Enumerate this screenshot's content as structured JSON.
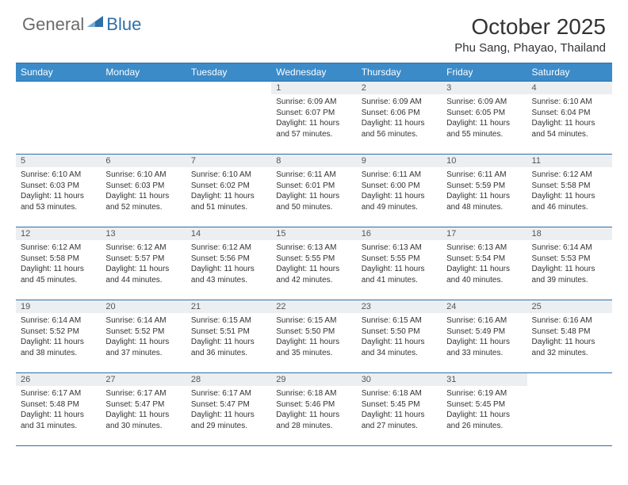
{
  "branding": {
    "logo_general": "General",
    "logo_blue": "Blue",
    "logo_colors": {
      "general": "#6b6b6b",
      "blue": "#2f6fa8",
      "icon": "#2f6fa8"
    }
  },
  "header": {
    "month_title": "October 2025",
    "location": "Phu Sang, Phayao, Thailand"
  },
  "colors": {
    "header_bg": "#3b8bc9",
    "header_border": "#2f6fa8",
    "daynum_bg": "#eceff1",
    "text": "#333333",
    "background": "#ffffff"
  },
  "typography": {
    "month_title_fontsize": 28,
    "location_fontsize": 15,
    "weekday_fontsize": 12,
    "daynum_fontsize": 11,
    "body_fontsize": 10
  },
  "calendar": {
    "type": "table",
    "columns": [
      "Sunday",
      "Monday",
      "Tuesday",
      "Wednesday",
      "Thursday",
      "Friday",
      "Saturday"
    ],
    "weeks": [
      [
        null,
        null,
        null,
        {
          "day": "1",
          "sunrise": "Sunrise: 6:09 AM",
          "sunset": "Sunset: 6:07 PM",
          "daylight1": "Daylight: 11 hours",
          "daylight2": "and 57 minutes."
        },
        {
          "day": "2",
          "sunrise": "Sunrise: 6:09 AM",
          "sunset": "Sunset: 6:06 PM",
          "daylight1": "Daylight: 11 hours",
          "daylight2": "and 56 minutes."
        },
        {
          "day": "3",
          "sunrise": "Sunrise: 6:09 AM",
          "sunset": "Sunset: 6:05 PM",
          "daylight1": "Daylight: 11 hours",
          "daylight2": "and 55 minutes."
        },
        {
          "day": "4",
          "sunrise": "Sunrise: 6:10 AM",
          "sunset": "Sunset: 6:04 PM",
          "daylight1": "Daylight: 11 hours",
          "daylight2": "and 54 minutes."
        }
      ],
      [
        {
          "day": "5",
          "sunrise": "Sunrise: 6:10 AM",
          "sunset": "Sunset: 6:03 PM",
          "daylight1": "Daylight: 11 hours",
          "daylight2": "and 53 minutes."
        },
        {
          "day": "6",
          "sunrise": "Sunrise: 6:10 AM",
          "sunset": "Sunset: 6:03 PM",
          "daylight1": "Daylight: 11 hours",
          "daylight2": "and 52 minutes."
        },
        {
          "day": "7",
          "sunrise": "Sunrise: 6:10 AM",
          "sunset": "Sunset: 6:02 PM",
          "daylight1": "Daylight: 11 hours",
          "daylight2": "and 51 minutes."
        },
        {
          "day": "8",
          "sunrise": "Sunrise: 6:11 AM",
          "sunset": "Sunset: 6:01 PM",
          "daylight1": "Daylight: 11 hours",
          "daylight2": "and 50 minutes."
        },
        {
          "day": "9",
          "sunrise": "Sunrise: 6:11 AM",
          "sunset": "Sunset: 6:00 PM",
          "daylight1": "Daylight: 11 hours",
          "daylight2": "and 49 minutes."
        },
        {
          "day": "10",
          "sunrise": "Sunrise: 6:11 AM",
          "sunset": "Sunset: 5:59 PM",
          "daylight1": "Daylight: 11 hours",
          "daylight2": "and 48 minutes."
        },
        {
          "day": "11",
          "sunrise": "Sunrise: 6:12 AM",
          "sunset": "Sunset: 5:58 PM",
          "daylight1": "Daylight: 11 hours",
          "daylight2": "and 46 minutes."
        }
      ],
      [
        {
          "day": "12",
          "sunrise": "Sunrise: 6:12 AM",
          "sunset": "Sunset: 5:58 PM",
          "daylight1": "Daylight: 11 hours",
          "daylight2": "and 45 minutes."
        },
        {
          "day": "13",
          "sunrise": "Sunrise: 6:12 AM",
          "sunset": "Sunset: 5:57 PM",
          "daylight1": "Daylight: 11 hours",
          "daylight2": "and 44 minutes."
        },
        {
          "day": "14",
          "sunrise": "Sunrise: 6:12 AM",
          "sunset": "Sunset: 5:56 PM",
          "daylight1": "Daylight: 11 hours",
          "daylight2": "and 43 minutes."
        },
        {
          "day": "15",
          "sunrise": "Sunrise: 6:13 AM",
          "sunset": "Sunset: 5:55 PM",
          "daylight1": "Daylight: 11 hours",
          "daylight2": "and 42 minutes."
        },
        {
          "day": "16",
          "sunrise": "Sunrise: 6:13 AM",
          "sunset": "Sunset: 5:55 PM",
          "daylight1": "Daylight: 11 hours",
          "daylight2": "and 41 minutes."
        },
        {
          "day": "17",
          "sunrise": "Sunrise: 6:13 AM",
          "sunset": "Sunset: 5:54 PM",
          "daylight1": "Daylight: 11 hours",
          "daylight2": "and 40 minutes."
        },
        {
          "day": "18",
          "sunrise": "Sunrise: 6:14 AM",
          "sunset": "Sunset: 5:53 PM",
          "daylight1": "Daylight: 11 hours",
          "daylight2": "and 39 minutes."
        }
      ],
      [
        {
          "day": "19",
          "sunrise": "Sunrise: 6:14 AM",
          "sunset": "Sunset: 5:52 PM",
          "daylight1": "Daylight: 11 hours",
          "daylight2": "and 38 minutes."
        },
        {
          "day": "20",
          "sunrise": "Sunrise: 6:14 AM",
          "sunset": "Sunset: 5:52 PM",
          "daylight1": "Daylight: 11 hours",
          "daylight2": "and 37 minutes."
        },
        {
          "day": "21",
          "sunrise": "Sunrise: 6:15 AM",
          "sunset": "Sunset: 5:51 PM",
          "daylight1": "Daylight: 11 hours",
          "daylight2": "and 36 minutes."
        },
        {
          "day": "22",
          "sunrise": "Sunrise: 6:15 AM",
          "sunset": "Sunset: 5:50 PM",
          "daylight1": "Daylight: 11 hours",
          "daylight2": "and 35 minutes."
        },
        {
          "day": "23",
          "sunrise": "Sunrise: 6:15 AM",
          "sunset": "Sunset: 5:50 PM",
          "daylight1": "Daylight: 11 hours",
          "daylight2": "and 34 minutes."
        },
        {
          "day": "24",
          "sunrise": "Sunrise: 6:16 AM",
          "sunset": "Sunset: 5:49 PM",
          "daylight1": "Daylight: 11 hours",
          "daylight2": "and 33 minutes."
        },
        {
          "day": "25",
          "sunrise": "Sunrise: 6:16 AM",
          "sunset": "Sunset: 5:48 PM",
          "daylight1": "Daylight: 11 hours",
          "daylight2": "and 32 minutes."
        }
      ],
      [
        {
          "day": "26",
          "sunrise": "Sunrise: 6:17 AM",
          "sunset": "Sunset: 5:48 PM",
          "daylight1": "Daylight: 11 hours",
          "daylight2": "and 31 minutes."
        },
        {
          "day": "27",
          "sunrise": "Sunrise: 6:17 AM",
          "sunset": "Sunset: 5:47 PM",
          "daylight1": "Daylight: 11 hours",
          "daylight2": "and 30 minutes."
        },
        {
          "day": "28",
          "sunrise": "Sunrise: 6:17 AM",
          "sunset": "Sunset: 5:47 PM",
          "daylight1": "Daylight: 11 hours",
          "daylight2": "and 29 minutes."
        },
        {
          "day": "29",
          "sunrise": "Sunrise: 6:18 AM",
          "sunset": "Sunset: 5:46 PM",
          "daylight1": "Daylight: 11 hours",
          "daylight2": "and 28 minutes."
        },
        {
          "day": "30",
          "sunrise": "Sunrise: 6:18 AM",
          "sunset": "Sunset: 5:45 PM",
          "daylight1": "Daylight: 11 hours",
          "daylight2": "and 27 minutes."
        },
        {
          "day": "31",
          "sunrise": "Sunrise: 6:19 AM",
          "sunset": "Sunset: 5:45 PM",
          "daylight1": "Daylight: 11 hours",
          "daylight2": "and 26 minutes."
        },
        null
      ]
    ]
  }
}
